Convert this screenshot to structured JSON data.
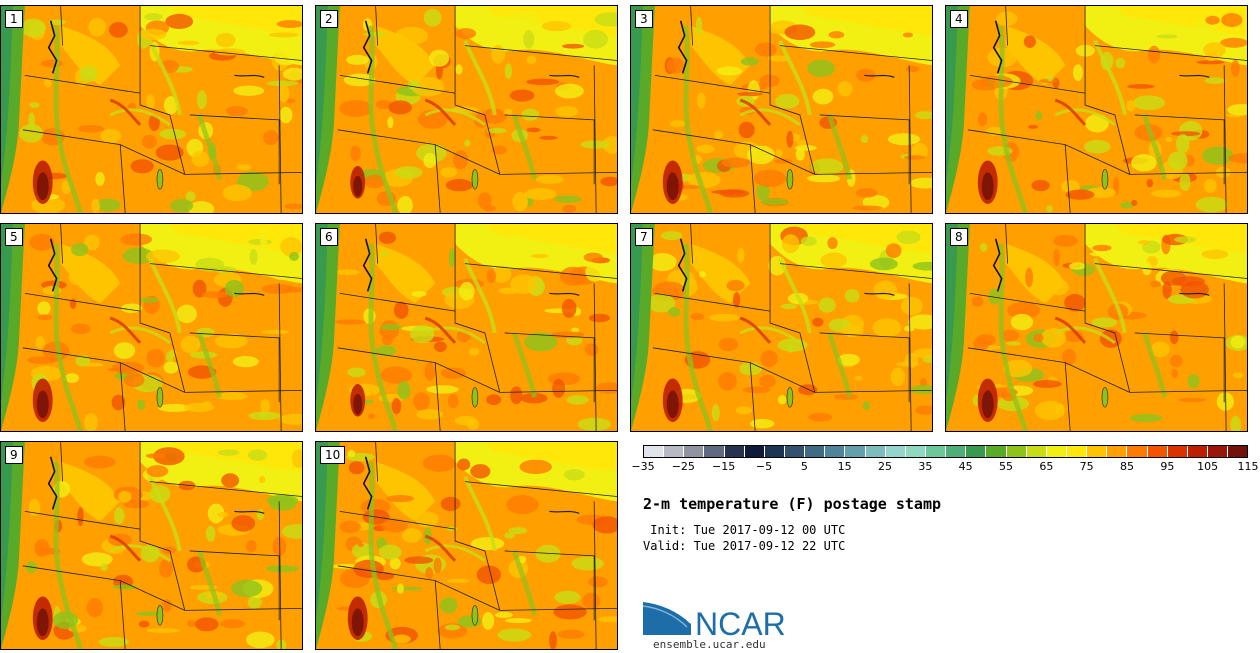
{
  "panels": [
    {
      "label": "1",
      "variant": 0
    },
    {
      "label": "2",
      "variant": 1
    },
    {
      "label": "3",
      "variant": 2
    },
    {
      "label": "4",
      "variant": 3
    },
    {
      "label": "5",
      "variant": 4
    },
    {
      "label": "6",
      "variant": 5
    },
    {
      "label": "7",
      "variant": 6
    },
    {
      "label": "8",
      "variant": 7
    },
    {
      "label": "9",
      "variant": 8
    },
    {
      "label": "10",
      "variant": 9
    }
  ],
  "colorbar": {
    "colors": [
      "#e2e4ec",
      "#b7bac4",
      "#8e94a2",
      "#5f6a80",
      "#27324e",
      "#0f1a38",
      "#1c3555",
      "#32526e",
      "#3f6b84",
      "#4f8399",
      "#64a0ac",
      "#7dbdbd",
      "#93d6cd",
      "#8fd9c0",
      "#6cc79b",
      "#4dae77",
      "#379a4f",
      "#5aaa2a",
      "#8dc31b",
      "#c8dd14",
      "#f2ef12",
      "#ffe70a",
      "#ffc400",
      "#ff9f00",
      "#ff7a00",
      "#f25400",
      "#da3300",
      "#be1f00",
      "#9a1608",
      "#731208"
    ],
    "ticks": [
      "−35",
      "−25",
      "−15",
      "−5",
      "5",
      "15",
      "25",
      "35",
      "45",
      "55",
      "65",
      "75",
      "85",
      "95",
      "105",
      "115"
    ],
    "min": -40,
    "max": 120
  },
  "title": "2-m temperature (F) postage stamp",
  "init": " Init: Tue 2017-09-12 00 UTC",
  "valid": "Valid: Tue 2017-09-12 22 UTC",
  "logo": {
    "text": "NCAR",
    "url": "ensemble.ucar.edu",
    "color": "#1d6ea8"
  }
}
